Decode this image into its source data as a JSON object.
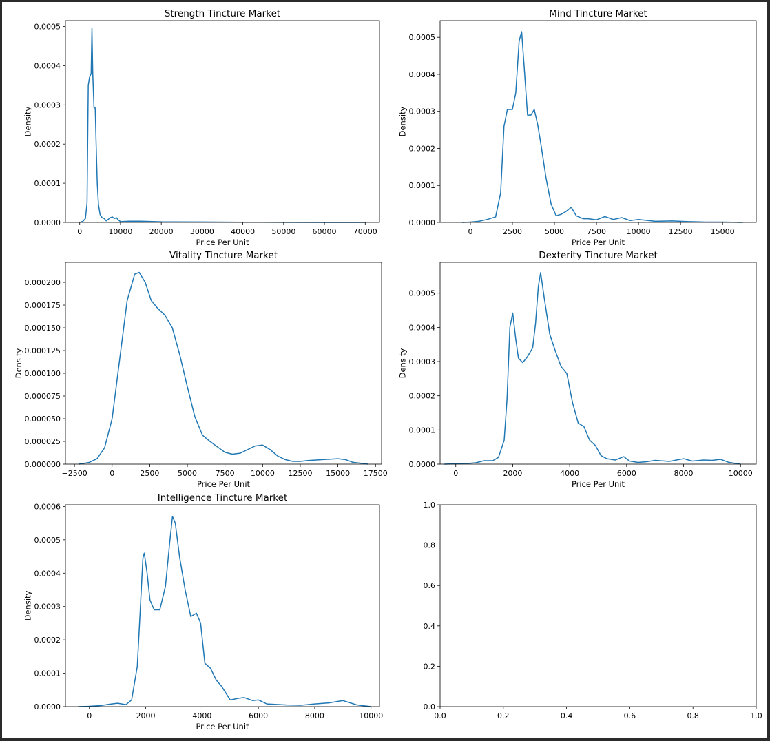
{
  "chart_data": [
    {
      "type": "line",
      "title": "Strength Tincture Market",
      "xlabel": "Price Per Unit",
      "ylabel": "Density",
      "xlim": [
        -3500,
        73500
      ],
      "ylim": [
        0,
        0.000515
      ],
      "xticks": [
        0,
        10000,
        20000,
        30000,
        40000,
        50000,
        60000,
        70000
      ],
      "yticks": [
        0,
        0.0001,
        0.0002,
        0.0003,
        0.0004,
        0.0005
      ],
      "ytick_labels": [
        "0.0000",
        "0.0001",
        "0.0002",
        "0.0003",
        "0.0004",
        "0.0005"
      ],
      "color": "#1f77b4",
      "grid": false,
      "x": [
        0,
        800,
        1400,
        1800,
        2100,
        2400,
        2800,
        3000,
        3200,
        3500,
        3800,
        4000,
        4300,
        4600,
        5000,
        5500,
        6000,
        6500,
        7000,
        7500,
        8000,
        8500,
        9000,
        9500,
        10000,
        12000,
        15000,
        20000,
        30000,
        40000,
        50000,
        60000,
        70000
      ],
      "y": [
        0,
        3e-06,
        1e-05,
        5e-05,
        0.00035,
        0.00037,
        0.00038,
        0.000495,
        0.00038,
        0.000293,
        0.000292,
        0.00021,
        0.0001,
        4.5e-05,
        2e-05,
        1.2e-05,
        1e-05,
        4e-06,
        8e-06,
        1.2e-05,
        1.4e-05,
        1e-05,
        1.2e-05,
        6e-06,
        2e-06,
        3e-06,
        3e-06,
        1.5e-06,
        1e-06,
        5e-07,
        3e-07,
        1e-07,
        0
      ]
    },
    {
      "type": "line",
      "title": "Mind Tincture Market",
      "xlabel": "Price Per Unit",
      "ylabel": "Density",
      "xlim": [
        -1800,
        17000
      ],
      "ylim": [
        0,
        0.000545
      ],
      "xticks": [
        0,
        2500,
        5000,
        7500,
        10000,
        12500,
        15000
      ],
      "yticks": [
        0,
        0.0001,
        0.0002,
        0.0003,
        0.0004,
        0.0005
      ],
      "ytick_labels": [
        "0.0000",
        "0.0001",
        "0.0002",
        "0.0003",
        "0.0004",
        "0.0005"
      ],
      "color": "#1f77b4",
      "grid": false,
      "x": [
        -500,
        0,
        500,
        1000,
        1500,
        1800,
        2000,
        2200,
        2500,
        2700,
        2900,
        3050,
        3200,
        3400,
        3600,
        3800,
        4000,
        4200,
        4500,
        4800,
        5100,
        5400,
        5700,
        6000,
        6300,
        6700,
        7000,
        7500,
        8000,
        8500,
        9000,
        9500,
        10000,
        11000,
        12000,
        13000,
        14000,
        15000,
        16200
      ],
      "y": [
        0,
        1e-06,
        3e-06,
        8e-06,
        1.5e-05,
        8e-05,
        0.00026,
        0.000305,
        0.000305,
        0.00035,
        0.00049,
        0.000515,
        0.00042,
        0.00029,
        0.00029,
        0.000305,
        0.000265,
        0.00021,
        0.00012,
        5e-05,
        1.8e-05,
        2.2e-05,
        3e-05,
        4.1e-05,
        1.8e-05,
        1e-05,
        1e-05,
        7e-06,
        1.6e-05,
        8e-06,
        1.3e-05,
        5e-06,
        8e-06,
        3e-06,
        4e-06,
        2e-06,
        1e-06,
        1e-06,
        0
      ]
    },
    {
      "type": "line",
      "title": "Vitality Tincture Market",
      "xlabel": "Price Per Unit",
      "ylabel": "Density",
      "xlim": [
        -3100,
        17900
      ],
      "ylim": [
        0,
        0.000222
      ],
      "xticks": [
        -2500,
        0,
        2500,
        5000,
        7500,
        10000,
        12500,
        15000,
        17500
      ],
      "yticks": [
        0,
        2.5e-05,
        5e-05,
        7.5e-05,
        0.0001,
        0.000125,
        0.00015,
        0.000175,
        0.0002
      ],
      "ytick_labels": [
        "0.000000",
        "0.000025",
        "0.000050",
        "0.000075",
        "0.000100",
        "0.000125",
        "0.000150",
        "0.000175",
        "0.000200"
      ],
      "color": "#1f77b4",
      "grid": false,
      "x": [
        -2200,
        -1500,
        -1000,
        -500,
        0,
        500,
        1000,
        1500,
        1800,
        2200,
        2600,
        3000,
        3500,
        4000,
        4500,
        5000,
        5500,
        6000,
        6500,
        7000,
        7500,
        8000,
        8500,
        9000,
        9500,
        10000,
        10500,
        11000,
        11500,
        12000,
        12500,
        13000,
        14000,
        15000,
        15500,
        16000,
        16500,
        17000
      ],
      "y": [
        0,
        2e-06,
        6e-06,
        1.8e-05,
        5e-05,
        0.000115,
        0.00018,
        0.000209,
        0.000211,
        0.0002,
        0.00018,
        0.000172,
        0.000164,
        0.00015,
        0.00012,
        8.5e-05,
        5.2e-05,
        3.2e-05,
        2.5e-05,
        1.9e-05,
        1.3e-05,
        1.1e-05,
        1.2e-05,
        1.6e-05,
        2e-05,
        2.1e-05,
        1.6e-05,
        9e-06,
        5e-06,
        3e-06,
        3e-06,
        4e-06,
        5e-06,
        6e-06,
        5e-06,
        2e-06,
        1e-06,
        0
      ]
    },
    {
      "type": "line",
      "title": "Dexterity Tincture Market",
      "xlabel": "Price Per Unit",
      "ylabel": "Density",
      "xlim": [
        -550,
        10550
      ],
      "ylim": [
        0,
        0.00059
      ],
      "xticks": [
        0,
        2000,
        4000,
        6000,
        8000,
        10000
      ],
      "yticks": [
        0,
        0.0001,
        0.0002,
        0.0003,
        0.0004,
        0.0005
      ],
      "ytick_labels": [
        "0.0000",
        "0.0001",
        "0.0002",
        "0.0003",
        "0.0004",
        "0.0005"
      ],
      "color": "#1f77b4",
      "grid": false,
      "x": [
        -400,
        0,
        400,
        700,
        1000,
        1300,
        1500,
        1700,
        1800,
        1900,
        2000,
        2100,
        2200,
        2350,
        2500,
        2700,
        2800,
        2900,
        2980,
        3100,
        3300,
        3500,
        3700,
        3900,
        4100,
        4300,
        4500,
        4700,
        4900,
        5100,
        5300,
        5600,
        5900,
        6100,
        6400,
        6700,
        7000,
        7500,
        8000,
        8300,
        8700,
        9000,
        9300,
        9600,
        10000
      ],
      "y": [
        0,
        1e-06,
        2e-06,
        4e-06,
        1e-05,
        1e-05,
        2e-05,
        7e-05,
        0.00019,
        0.0004,
        0.000442,
        0.00037,
        0.00031,
        0.000297,
        0.000312,
        0.00034,
        0.00041,
        0.00052,
        0.00056,
        0.00049,
        0.00038,
        0.00033,
        0.000285,
        0.000265,
        0.00018,
        0.00012,
        0.00011,
        7e-05,
        5.5e-05,
        2.5e-05,
        1.6e-05,
        1.2e-05,
        2.2e-05,
        9e-06,
        5e-06,
        7e-06,
        1.1e-05,
        8e-06,
        1.6e-05,
        9e-06,
        1.2e-05,
        1.1e-05,
        1.4e-05,
        5e-06,
        0
      ]
    },
    {
      "type": "line",
      "title": "Intelligence Tincture Market",
      "xlabel": "Price Per Unit",
      "ylabel": "Density",
      "xlim": [
        -850,
        10300
      ],
      "ylim": [
        0,
        0.000605
      ],
      "xticks": [
        0,
        2000,
        4000,
        6000,
        8000,
        10000
      ],
      "yticks": [
        0,
        0.0001,
        0.0002,
        0.0003,
        0.0004,
        0.0005,
        0.0006
      ],
      "ytick_labels": [
        "0.0000",
        "0.0001",
        "0.0002",
        "0.0003",
        "0.0004",
        "0.0005",
        "0.0006"
      ],
      "color": "#1f77b4",
      "grid": false,
      "x": [
        -400,
        0,
        400,
        700,
        1000,
        1300,
        1500,
        1700,
        1800,
        1900,
        1950,
        2050,
        2150,
        2300,
        2500,
        2700,
        2850,
        2950,
        3050,
        3200,
        3400,
        3600,
        3800,
        3950,
        4100,
        4300,
        4500,
        4700,
        5000,
        5300,
        5500,
        5800,
        6000,
        6300,
        7000,
        7500,
        8000,
        8500,
        9000,
        9500,
        10000
      ],
      "y": [
        0,
        1e-06,
        3e-06,
        7e-06,
        1e-05,
        6e-06,
        2e-05,
        0.00012,
        0.00028,
        0.000445,
        0.00046,
        0.0004,
        0.00032,
        0.00029,
        0.00029,
        0.00036,
        0.00049,
        0.00057,
        0.00055,
        0.00045,
        0.00035,
        0.00027,
        0.00028,
        0.00025,
        0.00013,
        0.000115,
        8e-05,
        6e-05,
        2e-05,
        2.5e-05,
        2.7e-05,
        1.8e-05,
        2e-05,
        8e-06,
        5e-06,
        4e-06,
        8e-06,
        1.1e-05,
        1.8e-05,
        5e-06,
        0
      ]
    },
    {
      "type": "line",
      "title": "",
      "xlabel": "",
      "ylabel": "",
      "xlim": [
        0,
        1
      ],
      "ylim": [
        0,
        1
      ],
      "xticks": [
        0,
        0.2,
        0.4,
        0.6,
        0.8,
        1
      ],
      "yticks": [
        0,
        0.2,
        0.4,
        0.6,
        0.8,
        1
      ],
      "xtick_labels": [
        "0.0",
        "0.2",
        "0.4",
        "0.6",
        "0.8",
        "1.0"
      ],
      "ytick_labels": [
        "0.0",
        "0.2",
        "0.4",
        "0.6",
        "0.8",
        "1.0"
      ],
      "color": "#1f77b4",
      "grid": false,
      "x": [],
      "y": []
    }
  ]
}
